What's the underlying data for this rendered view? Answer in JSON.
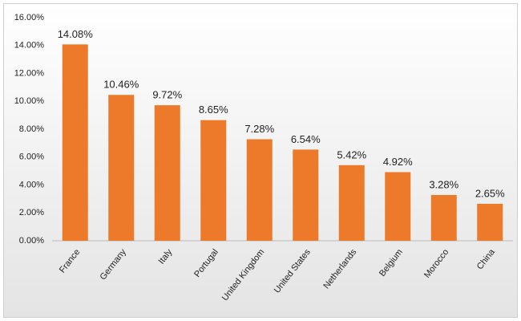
{
  "chart_data": {
    "type": "bar",
    "categories": [
      "France",
      "Germany",
      "Italy",
      "Portugal",
      "United Kingdom",
      "United States",
      "Netherlands",
      "Belgium",
      "Morocco",
      "China"
    ],
    "values": [
      14.08,
      10.46,
      9.72,
      8.65,
      7.28,
      6.54,
      5.42,
      4.92,
      3.28,
      2.65
    ],
    "value_labels": [
      "14.08%",
      "10.46%",
      "9.72%",
      "8.65%",
      "7.28%",
      "6.54%",
      "5.42%",
      "4.92%",
      "3.28%",
      "2.65%"
    ],
    "color": "#ec7a2a",
    "ylim": [
      0,
      16
    ],
    "yticks": [
      {
        "value": 0,
        "label": "0.00%"
      },
      {
        "value": 2,
        "label": "2.00%"
      },
      {
        "value": 4,
        "label": "4.00%"
      },
      {
        "value": 6,
        "label": "6.00%"
      },
      {
        "value": 8,
        "label": "8.00%"
      },
      {
        "value": 10,
        "label": "10.00%"
      },
      {
        "value": 12,
        "label": "12.00%"
      },
      {
        "value": 14,
        "label": "14.00%"
      },
      {
        "value": 16,
        "label": "16.00%"
      }
    ],
    "grid": false
  }
}
